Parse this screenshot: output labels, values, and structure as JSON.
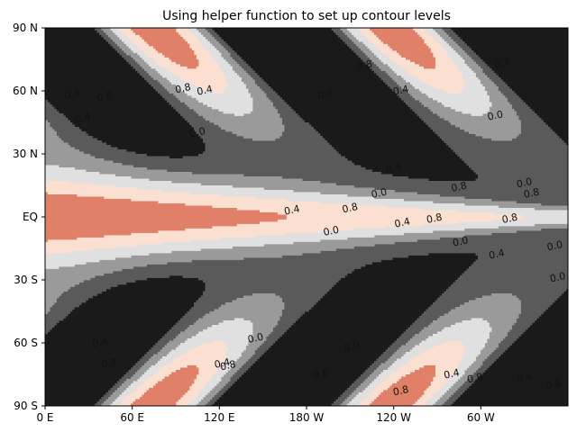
{
  "chart_data": {
    "type": "contour",
    "title": "Using helper function to set up contour levels",
    "xlabel": "",
    "ylabel": "",
    "x_ticks": [
      "0 E",
      "60 E",
      "120 E",
      "180 W",
      "120 W",
      "60 W"
    ],
    "x_tick_values": [
      0,
      60,
      120,
      180,
      240,
      300
    ],
    "y_ticks": [
      "90 S",
      "60 S",
      "30 S",
      "EQ",
      "30 N",
      "60 N",
      "90 N"
    ],
    "y_tick_values": [
      -90,
      -60,
      -30,
      0,
      30,
      60,
      90
    ],
    "xlim": [
      0,
      360
    ],
    "ylim": [
      -90,
      90
    ],
    "levels": [
      -1.0,
      -0.8,
      -0.6,
      -0.4,
      -0.2,
      0.0,
      0.2,
      0.4,
      0.6,
      0.8,
      1.0
    ],
    "level_colors": [
      "#1a1a1a",
      "#1a1a1a",
      "#1a1a1a",
      "#1a1a1a",
      "#1a1a1a",
      "#5a5a5a",
      "#9a9a9a",
      "#e0e0e0",
      "#fbe0d2",
      "#e08068"
    ],
    "contour_labels": [
      {
        "text": "0.8",
        "lon": 19,
        "lat": 58
      },
      {
        "text": "0.4",
        "lon": 26,
        "lat": 47
      },
      {
        "text": "0.8",
        "lon": 41,
        "lat": 57
      },
      {
        "text": "0.0",
        "lon": 105,
        "lat": 40
      },
      {
        "text": "0.8",
        "lon": 95,
        "lat": 61
      },
      {
        "text": "0.4",
        "lon": 110,
        "lat": 60
      },
      {
        "text": "0.0",
        "lon": 193,
        "lat": 58
      },
      {
        "text": "0.8",
        "lon": 220,
        "lat": 72
      },
      {
        "text": "0.4",
        "lon": 245,
        "lat": 60
      },
      {
        "text": "0.0",
        "lon": 310,
        "lat": 48
      },
      {
        "text": "0.8",
        "lon": 315,
        "lat": 73
      },
      {
        "text": "0.4",
        "lon": 240,
        "lat": 23
      },
      {
        "text": "0.0",
        "lon": 230,
        "lat": 11
      },
      {
        "text": "0.8",
        "lon": 285,
        "lat": 14
      },
      {
        "text": "0.0",
        "lon": 330,
        "lat": 16
      },
      {
        "text": "0.8",
        "lon": 335,
        "lat": 11
      },
      {
        "text": "0.4",
        "lon": 170,
        "lat": 3
      },
      {
        "text": "0.8",
        "lon": 210,
        "lat": 4
      },
      {
        "text": "0.8",
        "lon": 268,
        "lat": -1
      },
      {
        "text": "0.0",
        "lon": 197,
        "lat": -7
      },
      {
        "text": "0.4",
        "lon": 246,
        "lat": -3
      },
      {
        "text": "0.8",
        "lon": 320,
        "lat": -1
      },
      {
        "text": "0.0",
        "lon": 286,
        "lat": -12
      },
      {
        "text": "0.4",
        "lon": 311,
        "lat": -18
      },
      {
        "text": "0.0",
        "lon": 351,
        "lat": -14
      },
      {
        "text": "0.0",
        "lon": 353,
        "lat": -29
      },
      {
        "text": "0.4",
        "lon": 38,
        "lat": -60
      },
      {
        "text": "0.8",
        "lon": 44,
        "lat": -70
      },
      {
        "text": "0.4",
        "lon": 122,
        "lat": -70
      },
      {
        "text": "0.8",
        "lon": 126,
        "lat": -71
      },
      {
        "text": "0.0",
        "lon": 145,
        "lat": -58
      },
      {
        "text": "0.8",
        "lon": 190,
        "lat": -75
      },
      {
        "text": "0.0",
        "lon": 211,
        "lat": -62
      },
      {
        "text": "0.8",
        "lon": 245,
        "lat": -83
      },
      {
        "text": "0.4",
        "lon": 280,
        "lat": -75
      },
      {
        "text": "0.8",
        "lon": 296,
        "lat": -77
      },
      {
        "text": "0.4",
        "lon": 330,
        "lat": -77
      },
      {
        "text": "0.8",
        "lon": 350,
        "lat": -80
      }
    ]
  }
}
